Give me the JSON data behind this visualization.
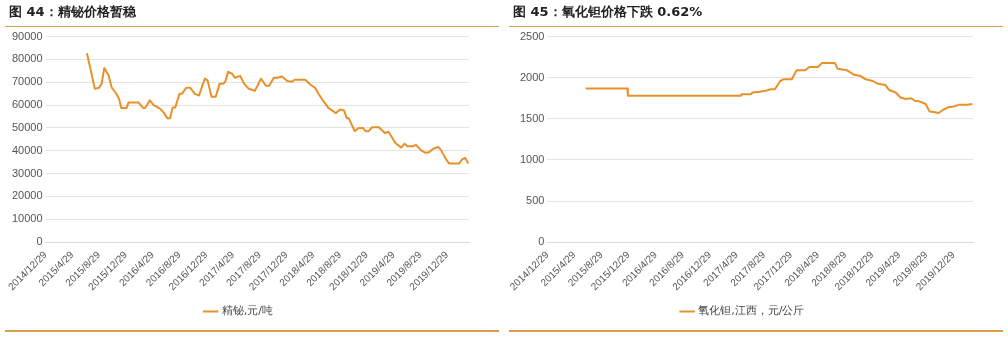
{
  "chart_data": [
    {
      "type": "line",
      "title": "图 44：精铋价格暂稳",
      "legend": "bottom",
      "grid": "y",
      "marker": "none",
      "line_style": "solid",
      "xlim": [
        "2014-12-29",
        "2020-04-07"
      ],
      "xticks": [
        {
          "value": "2014-12-29",
          "label": "2014/12/29"
        },
        {
          "value": "2015-04-29",
          "label": "2015/4/29"
        },
        {
          "value": "2015-08-29",
          "label": "2015/8/29"
        },
        {
          "value": "2015-12-29",
          "label": "2015/12/29"
        },
        {
          "value": "2016-04-29",
          "label": "2016/4/29"
        },
        {
          "value": "2016-08-29",
          "label": "2016/8/29"
        },
        {
          "value": "2016-12-29",
          "label": "2016/12/29"
        },
        {
          "value": "2017-04-29",
          "label": "2017/4/29"
        },
        {
          "value": "2017-08-29",
          "label": "2017/8/29"
        },
        {
          "value": "2017-12-29",
          "label": "2017/12/29"
        },
        {
          "value": "2018-04-29",
          "label": "2018/4/29"
        },
        {
          "value": "2018-08-29",
          "label": "2018/8/29"
        },
        {
          "value": "2018-12-29",
          "label": "2018/12/29"
        },
        {
          "value": "2019-04-29",
          "label": "2019/4/29"
        },
        {
          "value": "2019-08-29",
          "label": "2019/8/29"
        },
        {
          "value": "2019-12-29",
          "label": "2019/12/29"
        }
      ],
      "ylim": [
        0,
        90000
      ],
      "yticks": [
        0,
        10000,
        20000,
        30000,
        40000,
        50000,
        60000,
        70000,
        80000,
        90000
      ],
      "x": [
        "2015-07-05",
        "2015-07-20",
        "2015-08-10",
        "2015-08-29",
        "2015-09-10",
        "2015-09-22",
        "2015-10-02",
        "2015-10-11",
        "2015-10-26",
        "2015-11-16",
        "2015-11-29",
        "2015-12-08",
        "2016-01-01",
        "2016-01-10",
        "2016-02-25",
        "2016-03-18",
        "2016-03-26",
        "2016-04-16",
        "2016-05-05",
        "2016-05-29",
        "2016-06-19",
        "2016-07-05",
        "2016-07-17",
        "2016-07-29",
        "2016-08-10",
        "2016-08-29",
        "2016-09-10",
        "2016-09-29",
        "2016-10-17",
        "2016-11-07",
        "2016-11-26",
        "2016-12-11",
        "2016-12-23",
        "2017-01-04",
        "2017-01-22",
        "2017-02-10",
        "2017-02-28",
        "2017-03-17",
        "2017-03-26",
        "2017-04-07",
        "2017-04-26",
        "2017-05-08",
        "2017-06-01",
        "2017-06-19",
        "2017-07-08",
        "2017-08-07",
        "2017-08-19",
        "2017-09-04",
        "2017-09-26",
        "2017-10-11",
        "2017-11-01",
        "2017-11-19",
        "2017-12-08",
        "2018-01-01",
        "2018-01-23",
        "2018-02-04",
        "2018-03-24",
        "2018-04-16",
        "2018-05-08",
        "2018-05-23",
        "2018-06-16",
        "2018-07-08",
        "2018-07-26",
        "2018-08-10",
        "2018-08-29",
        "2018-09-16",
        "2018-09-29",
        "2018-10-08",
        "2018-11-04",
        "2018-11-22",
        "2018-12-11",
        "2018-12-23",
        "2019-01-07",
        "2019-01-22",
        "2019-02-22",
        "2019-03-21",
        "2019-04-07",
        "2019-05-08",
        "2019-06-04",
        "2019-06-19",
        "2019-07-02",
        "2019-07-26",
        "2019-08-10",
        "2019-09-01",
        "2019-09-22",
        "2019-10-08",
        "2019-10-26",
        "2019-11-19",
        "2019-12-02",
        "2019-12-20",
        "2020-01-07",
        "2020-02-22",
        "2020-03-06",
        "2020-03-20",
        "2020-04-04"
      ],
      "series": [
        {
          "name": "精铋,元/吨",
          "color": "#e8912a",
          "values": [
            82700,
            76300,
            67100,
            67600,
            69400,
            76300,
            74600,
            73200,
            67600,
            65000,
            62500,
            58700,
            58700,
            61100,
            61100,
            58700,
            58700,
            62100,
            59900,
            58700,
            56700,
            54200,
            54200,
            59000,
            59000,
            65000,
            65000,
            67600,
            67600,
            64900,
            64200,
            68500,
            71600,
            70800,
            63700,
            63700,
            69400,
            69400,
            70400,
            74600,
            73700,
            72000,
            72800,
            69400,
            67300,
            66300,
            68500,
            71600,
            68500,
            68500,
            72000,
            72000,
            72500,
            70600,
            70200,
            71100,
            71100,
            69000,
            67600,
            65000,
            61600,
            58700,
            57600,
            56400,
            58100,
            57800,
            54300,
            54300,
            48600,
            50000,
            50000,
            48600,
            48600,
            50300,
            50300,
            47800,
            48300,
            43400,
            41400,
            43100,
            42000,
            42000,
            42600,
            40300,
            39100,
            39400,
            40800,
            41700,
            40300,
            37000,
            34400,
            34400,
            36200,
            36900,
            34400
          ]
        }
      ]
    },
    {
      "type": "line",
      "title": "图 45：氧化钽价格下跌 0.62%",
      "legend": "bottom",
      "grid": "y",
      "marker": "none",
      "line_style": "solid",
      "xlim": [
        "2014-12-29",
        "2020-03-26"
      ],
      "xticks": [
        {
          "value": "2014-12-29",
          "label": "2014/12/29"
        },
        {
          "value": "2015-04-29",
          "label": "2015/4/29"
        },
        {
          "value": "2015-08-29",
          "label": "2015/8/29"
        },
        {
          "value": "2015-12-29",
          "label": "2015/12/29"
        },
        {
          "value": "2016-04-29",
          "label": "2016/4/29"
        },
        {
          "value": "2016-08-29",
          "label": "2016/8/29"
        },
        {
          "value": "2016-12-29",
          "label": "2016/12/29"
        },
        {
          "value": "2017-04-29",
          "label": "2017/4/29"
        },
        {
          "value": "2017-08-29",
          "label": "2017/8/29"
        },
        {
          "value": "2017-12-29",
          "label": "2017/12/29"
        },
        {
          "value": "2018-04-29",
          "label": "2018/4/29"
        },
        {
          "value": "2018-08-29",
          "label": "2018/8/29"
        },
        {
          "value": "2018-12-29",
          "label": "2018/12/29"
        },
        {
          "value": "2019-04-29",
          "label": "2019/4/29"
        },
        {
          "value": "2019-08-29",
          "label": "2019/8/29"
        },
        {
          "value": "2019-12-29",
          "label": "2019/12/29"
        }
      ],
      "ylim": [
        0,
        2500
      ],
      "yticks": [
        0,
        500,
        1000,
        1500,
        2000,
        2500
      ],
      "x": [
        "2015-06-19",
        "2015-12-24",
        "2015-12-26",
        "2017-05-17",
        "2017-05-20",
        "2017-07-02",
        "2017-07-08",
        "2017-08-10",
        "2017-09-04",
        "2017-09-29",
        "2017-10-17",
        "2017-11-10",
        "2017-11-25",
        "2018-01-01",
        "2018-01-23",
        "2018-03-03",
        "2018-03-21",
        "2018-04-29",
        "2018-05-17",
        "2018-07-14",
        "2018-07-26",
        "2018-09-07",
        "2018-10-05",
        "2018-11-07",
        "2018-11-29",
        "2019-01-01",
        "2019-01-19",
        "2019-02-26",
        "2019-03-15",
        "2019-04-13",
        "2019-05-05",
        "2019-05-29",
        "2019-06-23",
        "2019-07-08",
        "2019-08-01",
        "2019-08-26",
        "2019-09-13",
        "2019-10-08",
        "2019-10-23",
        "2019-11-13",
        "2019-12-05",
        "2019-12-29",
        "2020-01-22",
        "2020-03-02",
        "2020-03-23"
      ],
      "series": [
        {
          "name": "氧化钽,江西，元/公斤",
          "color": "#e8912a",
          "values": [
            1870,
            1870,
            1780,
            1780,
            1800,
            1800,
            1820,
            1830,
            1840,
            1860,
            1860,
            1960,
            1980,
            1980,
            2090,
            2090,
            2130,
            2130,
            2180,
            2180,
            2110,
            2090,
            2040,
            2020,
            1980,
            1960,
            1930,
            1910,
            1850,
            1820,
            1760,
            1740,
            1750,
            1720,
            1710,
            1680,
            1590,
            1580,
            1570,
            1610,
            1640,
            1650,
            1670,
            1670,
            1680
          ]
        }
      ]
    }
  ]
}
